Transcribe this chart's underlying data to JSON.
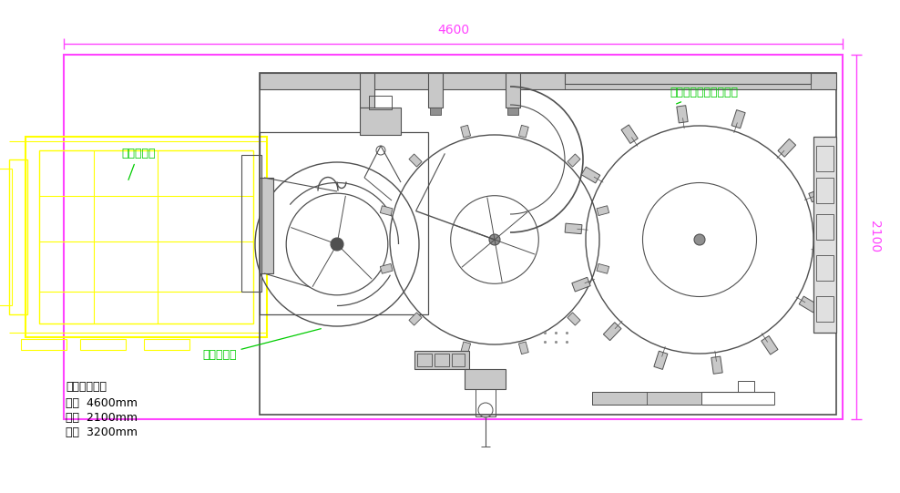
{
  "bg_color": "#ffffff",
  "magenta": "#ff44ff",
  "yellow": "#ffff00",
  "green": "#00cc00",
  "dark_gray": "#505050",
  "mid_gray": "#909090",
  "light_gray": "#c8c8c8",
  "label_shengdou": "单斗提升机",
  "label_suancai": "酸菜计量机",
  "label_jizhuang": "酸菜全自动真空包装机",
  "dim_4600": "4600",
  "dim_2100": "2100",
  "info_title": "设备尺尸约：",
  "info_length": "长：  4600mm",
  "info_width": "宽：  2100mm",
  "info_height": "高：  3200mm",
  "fig_width": 9.88,
  "fig_height": 5.41,
  "dpi": 100
}
